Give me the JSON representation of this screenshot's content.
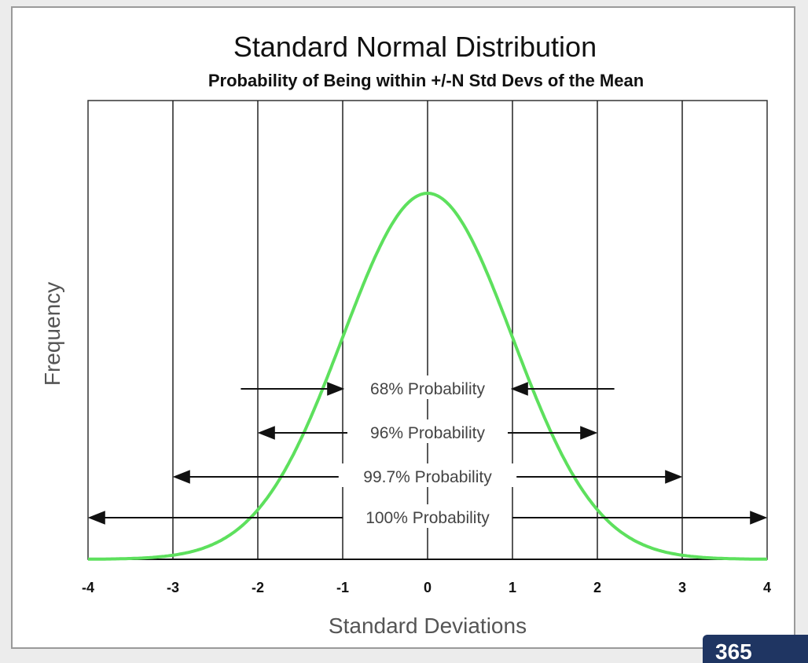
{
  "chart_data": {
    "type": "line",
    "title": "Standard Normal Distribution",
    "subtitle": "Probability of Being within +/-N Std Devs of the Mean",
    "xlabel": "Standard Deviations",
    "ylabel": "Frequency",
    "xlim": [
      -4,
      4
    ],
    "ylim": [
      0,
      0.5
    ],
    "x_ticks": [
      "-4",
      "-3",
      "-2",
      "-1",
      "0",
      "1",
      "2",
      "3",
      "4"
    ],
    "vertical_grid": [
      -3,
      -2,
      -1,
      0,
      1,
      2,
      3
    ],
    "grid": true,
    "series": [
      {
        "color": "#5de05d",
        "x": [
          -4,
          -3.5,
          -3,
          -2.5,
          -2,
          -1.75,
          -1.5,
          -1.25,
          -1,
          -0.75,
          -0.5,
          -0.25,
          0,
          0.25,
          0.5,
          0.75,
          1,
          1.25,
          1.5,
          1.75,
          2,
          2.5,
          3,
          3.5,
          4
        ],
        "y": [
          0.0001,
          0.0009,
          0.0044,
          0.0175,
          0.054,
          0.0863,
          0.1295,
          0.1826,
          0.242,
          0.3011,
          0.3521,
          0.3867,
          0.3989,
          0.3867,
          0.3521,
          0.3011,
          0.242,
          0.1826,
          0.1295,
          0.0863,
          0.054,
          0.0175,
          0.0044,
          0.0009,
          0.0001
        ]
      }
    ],
    "annotations": [
      {
        "label": "68% Probability",
        "range": [
          -1,
          1
        ],
        "style": "inward"
      },
      {
        "label": "96% Probability",
        "range": [
          -2,
          2
        ],
        "style": "outward"
      },
      {
        "label": "99.7% Probability",
        "range": [
          -3,
          3
        ],
        "style": "outward"
      },
      {
        "label": "100% Probability",
        "range": [
          -4,
          4
        ],
        "style": "outward"
      }
    ]
  },
  "logo": {
    "text": "365",
    "color": "#1f3562"
  }
}
